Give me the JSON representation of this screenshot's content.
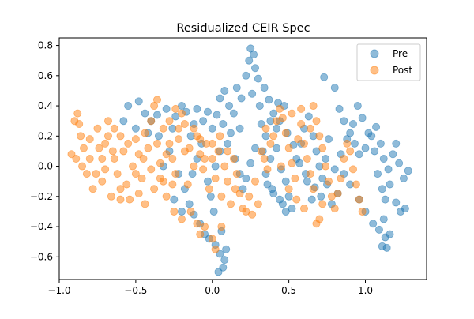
{
  "chart_data": {
    "type": "scatter",
    "title": "Residualized CEIR Spec",
    "xlabel": "",
    "ylabel": "",
    "xlim": [
      -1.0,
      1.4
    ],
    "ylim": [
      -0.75,
      0.85
    ],
    "x_ticks": [
      -1.0,
      -0.5,
      0.0,
      0.5,
      1.0
    ],
    "x_tick_labels": [
      "−1.0",
      "−0.5",
      "0.0",
      "0.5",
      "1.0"
    ],
    "y_ticks": [
      -0.6,
      -0.4,
      -0.2,
      0.0,
      0.2,
      0.4,
      0.6,
      0.8
    ],
    "y_tick_labels": [
      "−0.6",
      "−0.4",
      "−0.2",
      "0.0",
      "0.2",
      "0.4",
      "0.6",
      "0.8"
    ],
    "grid": false,
    "legend_position": "top-right",
    "series": [
      {
        "name": "Pre",
        "color": "#1f77b4",
        "alpha": 0.5,
        "points": [
          [
            -0.55,
            0.4
          ],
          [
            -0.48,
            0.43
          ],
          [
            -0.44,
            0.35
          ],
          [
            -0.4,
            0.3
          ],
          [
            -0.36,
            0.34
          ],
          [
            -0.3,
            0.38
          ],
          [
            -0.26,
            0.25
          ],
          [
            -0.24,
            0.33
          ],
          [
            -0.2,
            0.4
          ],
          [
            -0.17,
            0.36
          ],
          [
            -0.14,
            0.2
          ],
          [
            -0.12,
            0.28
          ],
          [
            -0.1,
            0.38
          ],
          [
            -0.06,
            0.3
          ],
          [
            -0.03,
            0.36
          ],
          [
            0.0,
            0.25
          ],
          [
            0.03,
            0.34
          ],
          [
            0.05,
            0.45
          ],
          [
            0.08,
            0.5
          ],
          [
            0.11,
            0.4
          ],
          [
            0.14,
            0.35
          ],
          [
            0.16,
            0.52
          ],
          [
            0.19,
            0.45
          ],
          [
            0.22,
            0.6
          ],
          [
            0.24,
            0.7
          ],
          [
            0.25,
            0.78
          ],
          [
            0.27,
            0.74
          ],
          [
            0.28,
            0.65
          ],
          [
            0.3,
            0.58
          ],
          [
            0.26,
            0.48
          ],
          [
            0.31,
            0.4
          ],
          [
            0.34,
            0.52
          ],
          [
            0.37,
            0.44
          ],
          [
            0.4,
            0.35
          ],
          [
            0.42,
            0.25
          ],
          [
            0.35,
            0.2
          ],
          [
            0.33,
            0.1
          ],
          [
            0.38,
            0.05
          ],
          [
            0.42,
            0.12
          ],
          [
            0.45,
            -0.02
          ],
          [
            0.48,
            -0.1
          ],
          [
            0.5,
            -0.2
          ],
          [
            0.52,
            -0.28
          ],
          [
            0.46,
            -0.25
          ],
          [
            0.4,
            -0.18
          ],
          [
            0.36,
            -0.12
          ],
          [
            0.55,
            0.05
          ],
          [
            0.58,
            0.15
          ],
          [
            0.6,
            0.25
          ],
          [
            0.63,
            0.33
          ],
          [
            0.66,
            0.2
          ],
          [
            0.68,
            0.1
          ],
          [
            0.7,
            0.0
          ],
          [
            0.72,
            -0.08
          ],
          [
            0.74,
            0.05
          ],
          [
            0.76,
            0.18
          ],
          [
            0.73,
            0.59
          ],
          [
            0.8,
            0.52
          ],
          [
            0.83,
            0.38
          ],
          [
            0.86,
            0.3
          ],
          [
            0.9,
            0.22
          ],
          [
            0.93,
            0.15
          ],
          [
            0.96,
            0.08
          ],
          [
            1.0,
            0.12
          ],
          [
            1.04,
            0.2
          ],
          [
            1.07,
            0.26
          ],
          [
            1.1,
            0.15
          ],
          [
            1.12,
            0.05
          ],
          [
            1.15,
            -0.02
          ],
          [
            1.18,
            0.08
          ],
          [
            1.2,
            0.15
          ],
          [
            1.22,
            0.02
          ],
          [
            1.25,
            -0.08
          ],
          [
            1.28,
            -0.03
          ],
          [
            1.16,
            -0.12
          ],
          [
            1.13,
            -0.22
          ],
          [
            1.2,
            -0.24
          ],
          [
            1.23,
            -0.3
          ],
          [
            1.26,
            -0.28
          ],
          [
            1.12,
            -0.35
          ],
          [
            1.09,
            -0.42
          ],
          [
            1.13,
            -0.47
          ],
          [
            1.16,
            -0.45
          ],
          [
            1.11,
            -0.53
          ],
          [
            1.14,
            -0.54
          ],
          [
            1.05,
            -0.38
          ],
          [
            1.0,
            -0.3
          ],
          [
            0.96,
            -0.22
          ],
          [
            0.9,
            -0.12
          ],
          [
            0.86,
            -0.05
          ],
          [
            0.82,
            -0.18
          ],
          [
            0.78,
            -0.25
          ],
          [
            0.65,
            -0.22
          ],
          [
            0.62,
            -0.1
          ],
          [
            -0.08,
            -0.38
          ],
          [
            -0.05,
            -0.45
          ],
          [
            -0.02,
            -0.48
          ],
          [
            0.02,
            -0.52
          ],
          [
            0.05,
            -0.58
          ],
          [
            0.08,
            -0.62
          ],
          [
            0.07,
            -0.67
          ],
          [
            0.04,
            -0.7
          ],
          [
            0.09,
            -0.55
          ],
          [
            0.06,
            -0.43
          ],
          [
            0.01,
            -0.3
          ],
          [
            -0.01,
            -0.2
          ],
          [
            -0.03,
            -0.1
          ],
          [
            0.02,
            0.0
          ],
          [
            0.05,
            0.1
          ],
          [
            0.1,
            0.15
          ],
          [
            0.15,
            0.05
          ],
          [
            0.18,
            -0.05
          ],
          [
            0.2,
            -0.15
          ],
          [
            0.22,
            -0.08
          ],
          [
            0.25,
            0.02
          ],
          [
            0.28,
            0.12
          ],
          [
            -0.28,
            0.1
          ],
          [
            -0.32,
            0.0
          ],
          [
            -0.22,
            -0.05
          ],
          [
            -0.18,
            -0.15
          ],
          [
            -0.15,
            -0.25
          ],
          [
            -0.12,
            -0.32
          ],
          [
            -0.2,
            -0.3
          ],
          [
            -0.25,
            -0.22
          ],
          [
            -0.35,
            0.2
          ],
          [
            -0.42,
            0.22
          ],
          [
            -0.5,
            0.25
          ],
          [
            -0.58,
            0.3
          ],
          [
            0.44,
            0.3
          ],
          [
            0.49,
            0.22
          ],
          [
            0.53,
            0.14
          ],
          [
            0.57,
            0.02
          ],
          [
            0.61,
            -0.05
          ],
          [
            0.67,
            -0.14
          ],
          [
            0.71,
            -0.2
          ],
          [
            0.75,
            -0.12
          ],
          [
            0.8,
            -0.02
          ],
          [
            0.84,
            0.08
          ],
          [
            0.88,
            0.18
          ],
          [
            0.92,
            0.28
          ],
          [
            0.95,
            0.4
          ],
          [
            0.98,
            0.32
          ],
          [
            1.02,
            0.22
          ],
          [
            1.06,
            0.1
          ],
          [
            1.08,
            -0.05
          ],
          [
            1.11,
            -0.15
          ],
          [
            0.43,
            0.42
          ],
          [
            0.47,
            0.4
          ],
          [
            0.38,
            0.3
          ],
          [
            0.32,
            0.28
          ],
          [
            0.18,
            0.25
          ],
          [
            0.12,
            0.22
          ],
          [
            0.07,
            0.28
          ],
          [
            -0.07,
            0.15
          ],
          [
            -0.1,
            0.05
          ],
          [
            -0.13,
            -0.05
          ],
          [
            0.35,
            -0.05
          ],
          [
            0.39,
            -0.15
          ],
          [
            0.44,
            -0.22
          ],
          [
            0.48,
            -0.3
          ]
        ]
      },
      {
        "name": "Post",
        "color": "#ff7f0e",
        "alpha": 0.5,
        "points": [
          [
            -0.92,
            0.08
          ],
          [
            -0.9,
            0.3
          ],
          [
            -0.88,
            0.35
          ],
          [
            -0.86,
            0.2
          ],
          [
            -0.85,
            0.0
          ],
          [
            -0.82,
            -0.05
          ],
          [
            -0.8,
            0.05
          ],
          [
            -0.78,
            -0.15
          ],
          [
            -0.75,
            0.25
          ],
          [
            -0.72,
            -0.1
          ],
          [
            -0.7,
            0.15
          ],
          [
            -0.68,
            0.3
          ],
          [
            -0.66,
            -0.2
          ],
          [
            -0.64,
            0.05
          ],
          [
            -0.62,
            -0.05
          ],
          [
            -0.6,
            0.2
          ],
          [
            -0.58,
            0.1
          ],
          [
            -0.56,
            -0.12
          ],
          [
            -0.54,
            -0.22
          ],
          [
            -0.52,
            0.0
          ],
          [
            -0.5,
            0.18
          ],
          [
            -0.48,
            0.08
          ],
          [
            -0.46,
            -0.08
          ],
          [
            -0.44,
            0.22
          ],
          [
            -0.42,
            0.12
          ],
          [
            -0.4,
            0.3
          ],
          [
            -0.38,
            0.4
          ],
          [
            -0.36,
            0.44
          ],
          [
            -0.34,
            0.02
          ],
          [
            -0.32,
            -0.1
          ],
          [
            -0.3,
            -0.2
          ],
          [
            -0.28,
            0.15
          ],
          [
            -0.26,
            0.05
          ],
          [
            -0.24,
            -0.05
          ],
          [
            -0.22,
            0.25
          ],
          [
            -0.2,
            0.35
          ],
          [
            -0.18,
            0.1
          ],
          [
            -0.16,
            -0.12
          ],
          [
            -0.14,
            -0.3
          ],
          [
            -0.12,
            0.0
          ],
          [
            -0.1,
            0.2
          ],
          [
            -0.08,
            0.08
          ],
          [
            -0.06,
            -0.02
          ],
          [
            -0.04,
            0.15
          ],
          [
            -0.02,
            -0.15
          ],
          [
            0.0,
            0.05
          ],
          [
            0.02,
            -0.08
          ],
          [
            0.04,
            0.1
          ],
          [
            0.06,
            -0.2
          ],
          [
            0.08,
            0.0
          ],
          [
            0.1,
            -0.1
          ],
          [
            0.12,
            -0.25
          ],
          [
            0.14,
            0.05
          ],
          [
            0.16,
            -0.05
          ],
          [
            0.18,
            -0.18
          ],
          [
            0.2,
            -0.28
          ],
          [
            0.22,
            -0.3
          ],
          [
            0.26,
            -0.32
          ],
          [
            0.3,
            -0.25
          ],
          [
            0.32,
            0.1
          ],
          [
            0.34,
            0.05
          ],
          [
            0.36,
            -0.02
          ],
          [
            0.38,
            0.15
          ],
          [
            0.4,
            0.2
          ],
          [
            0.42,
            0.3
          ],
          [
            0.44,
            0.38
          ],
          [
            0.46,
            0.32
          ],
          [
            0.48,
            0.22
          ],
          [
            0.5,
            0.12
          ],
          [
            0.52,
            0.02
          ],
          [
            0.54,
            -0.08
          ],
          [
            0.56,
            0.18
          ],
          [
            0.58,
            0.28
          ],
          [
            0.6,
            0.15
          ],
          [
            0.62,
            0.05
          ],
          [
            0.64,
            -0.05
          ],
          [
            0.66,
            0.4
          ],
          [
            0.68,
            0.3
          ],
          [
            0.7,
            0.2
          ],
          [
            0.72,
            0.12
          ],
          [
            0.74,
            0.0
          ],
          [
            0.76,
            -0.1
          ],
          [
            0.78,
            -0.2
          ],
          [
            0.8,
            -0.28
          ],
          [
            0.82,
            -0.18
          ],
          [
            0.84,
            -0.08
          ],
          [
            0.86,
            0.05
          ],
          [
            0.88,
            0.15
          ],
          [
            0.9,
            0.1
          ],
          [
            0.92,
            -0.02
          ],
          [
            0.94,
            -0.12
          ],
          [
            0.96,
            -0.22
          ],
          [
            0.98,
            -0.3
          ],
          [
            0.7,
            -0.35
          ],
          [
            0.68,
            -0.38
          ],
          [
            -0.1,
            -0.38
          ],
          [
            -0.08,
            -0.45
          ],
          [
            -0.05,
            -0.4
          ],
          [
            0.0,
            -0.48
          ],
          [
            0.06,
            -0.4
          ],
          [
            0.02,
            -0.55
          ],
          [
            -0.2,
            -0.35
          ],
          [
            -0.25,
            -0.3
          ],
          [
            -0.6,
            -0.15
          ],
          [
            -0.65,
            0.1
          ],
          [
            -0.7,
            -0.02
          ],
          [
            -0.74,
            0.12
          ],
          [
            -0.8,
            0.18
          ],
          [
            -0.84,
            0.12
          ],
          [
            -0.87,
            0.28
          ],
          [
            -0.89,
            0.05
          ],
          [
            -0.76,
            -0.05
          ],
          [
            -0.72,
            0.05
          ],
          [
            -0.68,
            0.2
          ],
          [
            -0.64,
            0.25
          ],
          [
            -0.55,
            0.15
          ],
          [
            -0.5,
            -0.05
          ],
          [
            -0.45,
            0.05
          ],
          [
            -0.4,
            -0.02
          ],
          [
            -0.36,
            0.15
          ],
          [
            -0.32,
            0.25
          ],
          [
            -0.28,
            0.3
          ],
          [
            -0.24,
            0.38
          ],
          [
            -0.22,
            0.18
          ],
          [
            -0.18,
            0.28
          ],
          [
            -0.15,
            0.12
          ],
          [
            -0.12,
            0.25
          ],
          [
            -0.08,
            0.18
          ],
          [
            -0.05,
            0.05
          ],
          [
            0.0,
            0.15
          ],
          [
            0.05,
            0.2
          ],
          [
            0.1,
            0.1
          ],
          [
            0.15,
            -0.15
          ],
          [
            0.24,
            -0.2
          ],
          [
            0.28,
            -0.1
          ],
          [
            0.35,
            0.25
          ],
          [
            0.45,
            0.0
          ],
          [
            0.5,
            -0.15
          ],
          [
            0.55,
            -0.22
          ],
          [
            0.6,
            -0.28
          ],
          [
            0.66,
            -0.15
          ],
          [
            0.72,
            -0.25
          ],
          [
            0.64,
            0.25
          ],
          [
            0.58,
            0.38
          ],
          [
            0.52,
            0.35
          ],
          [
            -0.48,
            -0.18
          ],
          [
            -0.44,
            -0.25
          ],
          [
            -0.38,
            -0.15
          ],
          [
            -0.34,
            -0.08
          ],
          [
            -0.3,
            0.08
          ],
          [
            -0.26,
            -0.12
          ],
          [
            -0.6,
            -0.22
          ]
        ]
      }
    ]
  }
}
